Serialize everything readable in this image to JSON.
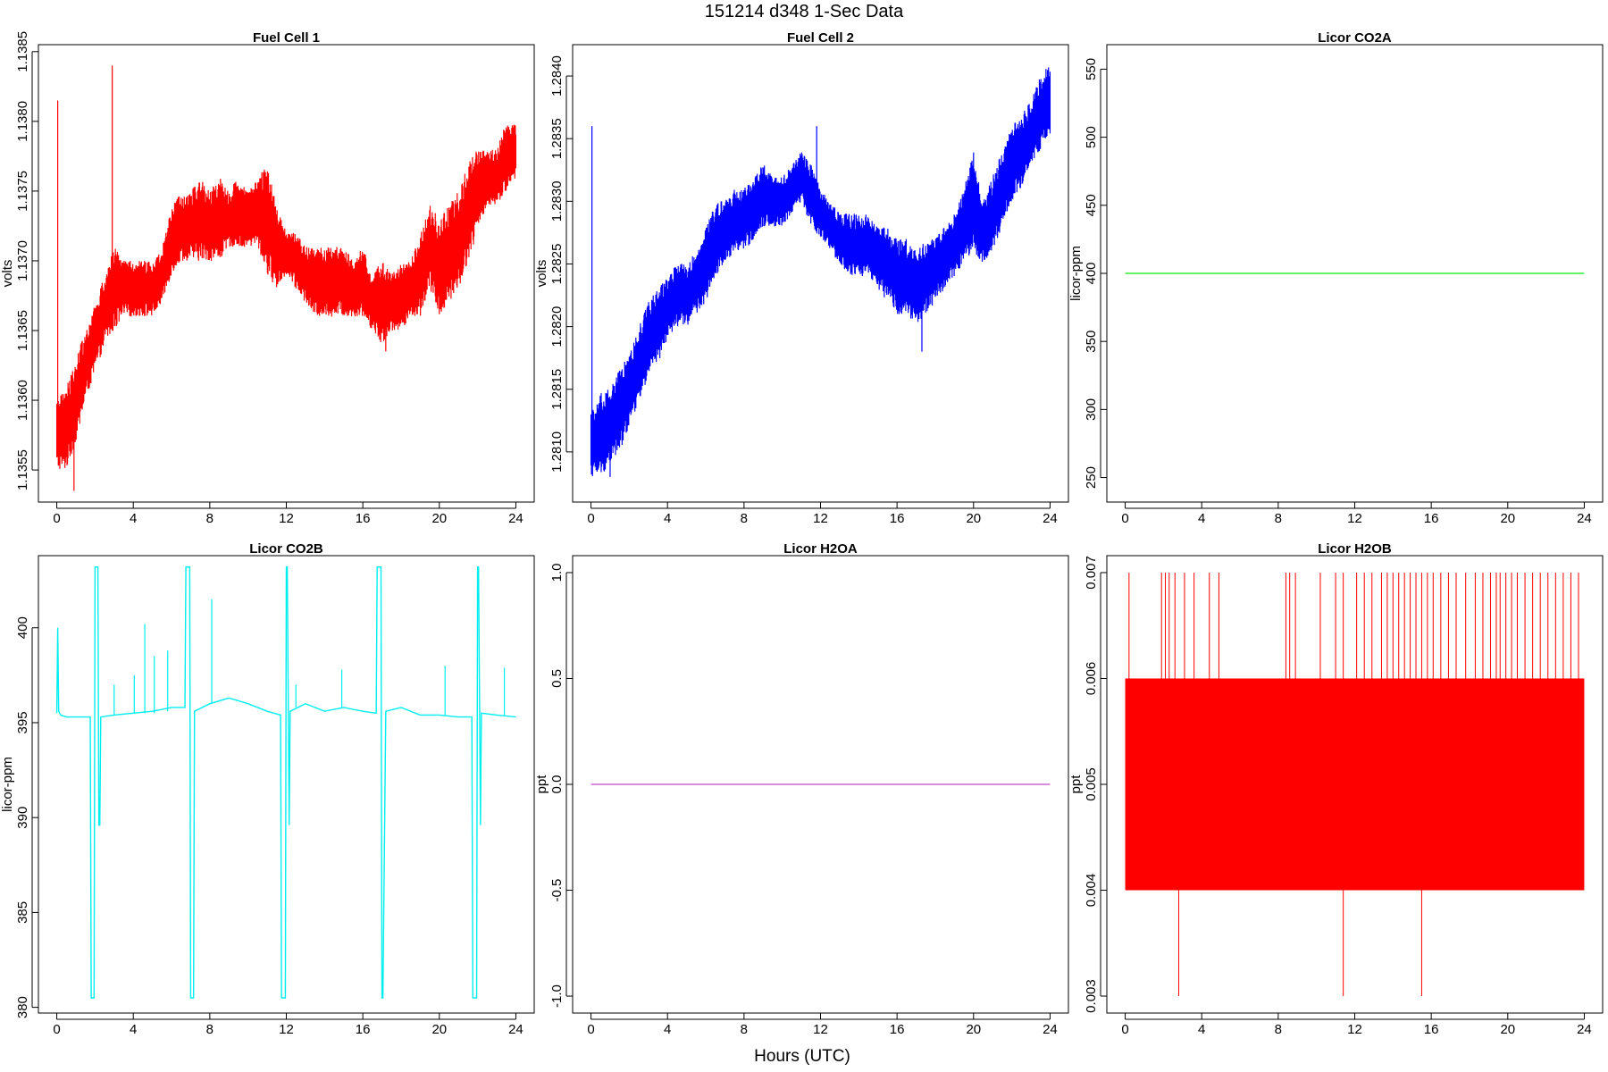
{
  "figure": {
    "title": "151214   d348   1-Sec Data",
    "xlabel": "Hours (UTC)"
  },
  "chart_data": [
    {
      "type": "line",
      "title": "Fuel Cell 1",
      "ylabel": "volts",
      "color": "#ff0000",
      "xlim": [
        -0.96,
        24.96
      ],
      "ylim": [
        1.13527,
        1.13855
      ],
      "xticks": [
        0,
        4,
        8,
        12,
        16,
        20,
        24
      ],
      "yticks": [
        1.1355,
        1.136,
        1.1365,
        1.137,
        1.1375,
        1.138,
        1.1385
      ],
      "ytick_labels": [
        "1.1355",
        "1.1360",
        "1.1365",
        "1.1370",
        "1.1375",
        "1.1380",
        "1.1385"
      ],
      "x": [
        0,
        0.5,
        1,
        1.5,
        2,
        2.5,
        3,
        3.5,
        4,
        4.5,
        5,
        5.5,
        6,
        6.5,
        7,
        7.5,
        8,
        8.5,
        9,
        9.5,
        10,
        10.5,
        11,
        11.5,
        12,
        12.5,
        13,
        13.5,
        14,
        14.5,
        15,
        15.5,
        16,
        16.5,
        17,
        17.5,
        18,
        18.5,
        19,
        19.5,
        20,
        20.5,
        21,
        21.5,
        22,
        22.5,
        23,
        23.5,
        24
      ],
      "y_min": [
        1.1355,
        1.1355,
        1.1357,
        1.136,
        1.1362,
        1.1364,
        1.1365,
        1.1366,
        1.1366,
        1.1366,
        1.1366,
        1.1367,
        1.1369,
        1.137,
        1.137,
        1.137,
        1.137,
        1.137,
        1.1371,
        1.1371,
        1.1371,
        1.1371,
        1.1369,
        1.1368,
        1.1369,
        1.1368,
        1.1367,
        1.1366,
        1.1366,
        1.1366,
        1.1366,
        1.1366,
        1.1366,
        1.1365,
        1.1364,
        1.1365,
        1.1365,
        1.1366,
        1.1366,
        1.1368,
        1.1366,
        1.1367,
        1.1368,
        1.137,
        1.1372,
        1.1374,
        1.1374,
        1.1375,
        1.1376
      ],
      "y_max": [
        1.136,
        1.1361,
        1.1363,
        1.1365,
        1.1367,
        1.1369,
        1.1371,
        1.137,
        1.137,
        1.137,
        1.137,
        1.1371,
        1.1374,
        1.1375,
        1.1375,
        1.1376,
        1.1375,
        1.1376,
        1.1375,
        1.1376,
        1.1375,
        1.1376,
        1.1377,
        1.1374,
        1.1372,
        1.1372,
        1.1371,
        1.1371,
        1.1371,
        1.1371,
        1.1371,
        1.137,
        1.1371,
        1.1369,
        1.137,
        1.1369,
        1.137,
        1.137,
        1.1372,
        1.1374,
        1.1373,
        1.1374,
        1.1375,
        1.1377,
        1.1378,
        1.1378,
        1.1378,
        1.138,
        1.138
      ],
      "spikes": [
        {
          "x": 0.05,
          "y0": 1.1358,
          "y1": 1.13815
        },
        {
          "x": 2.9,
          "y0": 1.137,
          "y1": 1.1384
        },
        {
          "x": 0.9,
          "y0": 1.13535,
          "y1": 1.1358
        },
        {
          "x": 17.2,
          "y0": 1.13635,
          "y1": 1.1366
        }
      ]
    },
    {
      "type": "line",
      "title": "Fuel Cell 2",
      "ylabel": "volts",
      "color": "#0000ff",
      "xlim": [
        -0.96,
        24.96
      ],
      "ylim": [
        1.2806,
        1.28425
      ],
      "xticks": [
        0,
        4,
        8,
        12,
        16,
        20,
        24
      ],
      "yticks": [
        1.281,
        1.2815,
        1.282,
        1.2825,
        1.283,
        1.2835,
        1.284
      ],
      "ytick_labels": [
        "1.2810",
        "1.2815",
        "1.2820",
        "1.2825",
        "1.2830",
        "1.2835",
        "1.2840"
      ],
      "x": [
        0,
        0.5,
        1,
        1.5,
        2,
        2.5,
        3,
        3.5,
        4,
        4.5,
        5,
        5.5,
        6,
        6.5,
        7,
        7.5,
        8,
        8.5,
        9,
        9.5,
        10,
        10.5,
        11,
        11.5,
        12,
        12.5,
        13,
        13.5,
        14,
        14.5,
        15,
        15.5,
        16,
        16.5,
        17,
        17.5,
        18,
        18.5,
        19,
        19.5,
        20,
        20.5,
        21,
        21.5,
        22,
        22.5,
        23,
        23.5,
        24
      ],
      "y_min": [
        1.2808,
        1.2808,
        1.2809,
        1.281,
        1.2812,
        1.2814,
        1.2816,
        1.2817,
        1.2819,
        1.282,
        1.282,
        1.2821,
        1.2822,
        1.2824,
        1.2825,
        1.2826,
        1.2826,
        1.2827,
        1.2828,
        1.2828,
        1.2828,
        1.2829,
        1.283,
        1.2828,
        1.2827,
        1.2826,
        1.2825,
        1.2824,
        1.2824,
        1.2824,
        1.2823,
        1.2822,
        1.2821,
        1.2821,
        1.282,
        1.2821,
        1.2822,
        1.2823,
        1.2824,
        1.2825,
        1.2826,
        1.2825,
        1.2826,
        1.2828,
        1.283,
        1.2831,
        1.2833,
        1.2834,
        1.2835
      ],
      "y_max": [
        1.2813,
        1.2815,
        1.2815,
        1.2817,
        1.2818,
        1.282,
        1.2822,
        1.2823,
        1.2824,
        1.2825,
        1.2825,
        1.2826,
        1.2828,
        1.283,
        1.283,
        1.2831,
        1.2831,
        1.2832,
        1.2833,
        1.2832,
        1.2832,
        1.2833,
        1.2834,
        1.2833,
        1.2831,
        1.283,
        1.2829,
        1.2829,
        1.2829,
        1.2829,
        1.2828,
        1.2828,
        1.2827,
        1.2827,
        1.2826,
        1.2827,
        1.2827,
        1.2828,
        1.2829,
        1.2831,
        1.2834,
        1.283,
        1.2832,
        1.2834,
        1.2836,
        1.2837,
        1.2838,
        1.284,
        1.2841
      ],
      "spikes": [
        {
          "x": 0.05,
          "y0": 1.2812,
          "y1": 1.2836
        },
        {
          "x": 1.0,
          "y0": 1.2808,
          "y1": 1.2812
        },
        {
          "x": 11.8,
          "y0": 1.283,
          "y1": 1.2836
        },
        {
          "x": 17.3,
          "y0": 1.2818,
          "y1": 1.2822
        }
      ]
    },
    {
      "type": "line",
      "title": "Licor CO2A",
      "ylabel": "licor-ppm",
      "color": "#33ee33",
      "xlim": [
        -0.96,
        24.96
      ],
      "ylim": [
        232.0,
        568.0
      ],
      "xticks": [
        0,
        4,
        8,
        12,
        16,
        20,
        24
      ],
      "yticks": [
        250,
        300,
        350,
        400,
        450,
        500,
        550
      ],
      "ytick_labels": [
        "250",
        "300",
        "350",
        "400",
        "450",
        "500",
        "550"
      ],
      "x": [
        0,
        24
      ],
      "y": [
        400,
        400
      ]
    },
    {
      "type": "line",
      "title": "Licor CO2B",
      "ylabel": "licor-ppm",
      "color": "#00eeee",
      "xlim": [
        -0.96,
        24.96
      ],
      "ylim": [
        379.7,
        403.8
      ],
      "xticks": [
        0,
        4,
        8,
        12,
        16,
        20,
        24
      ],
      "yticks": [
        380,
        385,
        390,
        395,
        400
      ],
      "ytick_labels": [
        "380",
        "385",
        "390",
        "395",
        "400"
      ],
      "x": [
        0,
        0.05,
        0.1,
        0.2,
        0.5,
        1.0,
        1.5,
        1.75,
        1.8,
        1.85,
        1.95,
        2.0,
        2.05,
        2.15,
        2.2,
        2.25,
        2.3,
        3.0,
        4.0,
        5.0,
        6.0,
        6.7,
        6.75,
        6.8,
        6.95,
        7.0,
        7.05,
        7.15,
        7.2,
        8.0,
        9.0,
        10.0,
        11.0,
        11.7,
        11.75,
        11.8,
        11.95,
        12.0,
        12.05,
        12.15,
        12.2,
        13.0,
        14.0,
        15.0,
        16.0,
        16.7,
        16.75,
        16.8,
        16.95,
        17.0,
        17.05,
        17.2,
        18.0,
        19.0,
        20.0,
        21.0,
        21.7,
        21.75,
        21.8,
        21.95,
        22.0,
        22.05,
        22.15,
        22.2,
        23.0,
        24.0
      ],
      "y": [
        395.5,
        400.0,
        395.6,
        395.4,
        395.3,
        395.3,
        395.3,
        395.3,
        380.5,
        380.5,
        380.5,
        403.2,
        403.2,
        403.2,
        389.6,
        389.6,
        395.3,
        395.4,
        395.5,
        395.6,
        395.8,
        395.8,
        403.2,
        403.2,
        403.2,
        380.5,
        380.5,
        380.5,
        395.6,
        396.0,
        396.3,
        396.0,
        395.6,
        395.4,
        380.5,
        380.5,
        380.5,
        403.2,
        403.2,
        389.6,
        395.6,
        396.0,
        395.6,
        395.8,
        395.6,
        395.5,
        403.2,
        403.2,
        403.2,
        380.5,
        380.5,
        395.6,
        395.8,
        395.4,
        395.4,
        395.3,
        395.3,
        380.5,
        380.5,
        380.5,
        403.2,
        403.2,
        389.6,
        395.5,
        395.4,
        395.3
      ],
      "spikes": [
        {
          "x": 3.0,
          "y0": 395.4,
          "y1": 397.0
        },
        {
          "x": 4.05,
          "y0": 395.5,
          "y1": 397.5
        },
        {
          "x": 4.6,
          "y0": 395.5,
          "y1": 400.2
        },
        {
          "x": 5.1,
          "y0": 395.5,
          "y1": 398.5
        },
        {
          "x": 5.8,
          "y0": 395.6,
          "y1": 398.8
        },
        {
          "x": 8.1,
          "y0": 396.0,
          "y1": 401.5
        },
        {
          "x": 12.5,
          "y0": 395.8,
          "y1": 397.0
        },
        {
          "x": 14.9,
          "y0": 395.8,
          "y1": 397.8
        },
        {
          "x": 20.3,
          "y0": 395.4,
          "y1": 398.0
        },
        {
          "x": 23.4,
          "y0": 395.4,
          "y1": 397.9
        }
      ]
    },
    {
      "type": "line",
      "title": "Licor H2OA",
      "ylabel": "ppt",
      "color": "#cc66cc",
      "xlim": [
        -0.96,
        24.96
      ],
      "ylim": [
        -1.08,
        1.08
      ],
      "xticks": [
        0,
        4,
        8,
        12,
        16,
        20,
        24
      ],
      "yticks": [
        -1.0,
        -0.5,
        0.0,
        0.5,
        1.0
      ],
      "ytick_labels": [
        "-1.0",
        "-0.5",
        "0.0",
        "0.5",
        "1.0"
      ],
      "x": [
        0,
        24
      ],
      "y": [
        0,
        0
      ]
    },
    {
      "type": "line",
      "title": "Licor H2OB",
      "ylabel": "ppt",
      "color": "#ff0000",
      "xlim": [
        -0.96,
        24.96
      ],
      "ylim": [
        0.00284,
        0.00716
      ],
      "xticks": [
        0,
        4,
        8,
        12,
        16,
        20,
        24
      ],
      "yticks": [
        0.003,
        0.004,
        0.005,
        0.006,
        0.007
      ],
      "ytick_labels": [
        "0.003",
        "0.004",
        "0.005",
        "0.006",
        "0.007"
      ],
      "band": {
        "x0": 0,
        "x1": 24,
        "y0": 0.004,
        "y1": 0.006
      },
      "spikes_up": [
        0.2,
        1.9,
        2.1,
        2.3,
        2.6,
        3.1,
        3.6,
        4.4,
        4.9,
        8.4,
        8.6,
        8.9,
        10.2,
        11.0,
        11.4,
        12.1,
        12.5,
        12.9,
        13.4,
        13.7,
        14.0,
        14.3,
        14.6,
        14.9,
        15.2,
        15.5,
        15.8,
        16.1,
        16.5,
        16.9,
        17.3,
        17.8,
        18.3,
        18.7,
        19.1,
        19.4,
        19.6,
        19.9,
        20.2,
        20.5,
        20.9,
        21.3,
        21.7,
        22.1,
        22.5,
        22.9,
        23.3,
        23.7
      ],
      "spikes_down": [
        2.8,
        11.4,
        15.5
      ]
    }
  ]
}
